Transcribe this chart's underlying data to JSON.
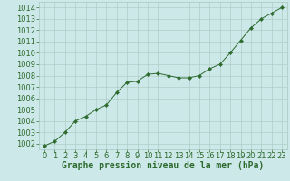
{
  "x": [
    0,
    1,
    2,
    3,
    4,
    5,
    6,
    7,
    8,
    9,
    10,
    11,
    12,
    13,
    14,
    15,
    16,
    17,
    18,
    19,
    20,
    21,
    22,
    23
  ],
  "y": [
    1001.8,
    1002.2,
    1003.0,
    1004.0,
    1004.4,
    1005.0,
    1005.4,
    1006.5,
    1007.4,
    1007.5,
    1008.1,
    1008.2,
    1008.0,
    1007.8,
    1007.8,
    1008.0,
    1008.6,
    1009.0,
    1010.0,
    1011.1,
    1012.2,
    1013.0,
    1013.5,
    1014.0
  ],
  "line_color": "#2d6a2d",
  "marker": "D",
  "marker_size": 2.2,
  "bg_color": "#cce8e8",
  "grid_color": "#a8c8c0",
  "xlabel": "Graphe pression niveau de la mer (hPa)",
  "xlabel_fontsize": 7,
  "xtick_fontsize": 6,
  "ytick_fontsize": 6,
  "ylim": [
    1001.5,
    1014.5
  ],
  "yticks": [
    1002,
    1003,
    1004,
    1005,
    1006,
    1007,
    1008,
    1009,
    1010,
    1011,
    1012,
    1013,
    1014
  ],
  "xlim": [
    -0.5,
    23.5
  ],
  "xticks": [
    0,
    1,
    2,
    3,
    4,
    5,
    6,
    7,
    8,
    9,
    10,
    11,
    12,
    13,
    14,
    15,
    16,
    17,
    18,
    19,
    20,
    21,
    22,
    23
  ]
}
